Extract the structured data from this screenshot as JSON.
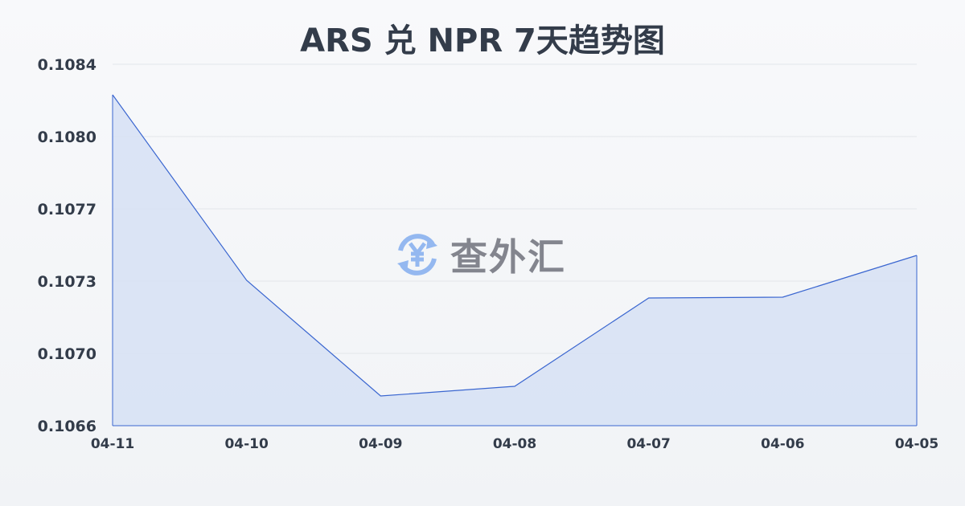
{
  "chart_data": {
    "type": "area",
    "title": "ARS 兑 NPR 7天趋势图",
    "categories": [
      "04-11",
      "04-10",
      "04-09",
      "04-08",
      "04-07",
      "04-06",
      "04-05"
    ],
    "values": [
      0.108248,
      0.107324,
      0.106748,
      0.106796,
      0.107236,
      0.10724,
      0.107448
    ],
    "yticks": [
      "0.1084",
      "0.1080",
      "0.1077",
      "0.1073",
      "0.1070",
      "0.1066"
    ],
    "ylim": [
      0.1066,
      0.1084
    ],
    "grid": true,
    "line_color": "#3a66d0",
    "fill_color": "#d6e0f5"
  },
  "watermark": {
    "text": "查外汇",
    "icon": "yen-exchange-icon",
    "icon_color": "#8fb5f0"
  }
}
